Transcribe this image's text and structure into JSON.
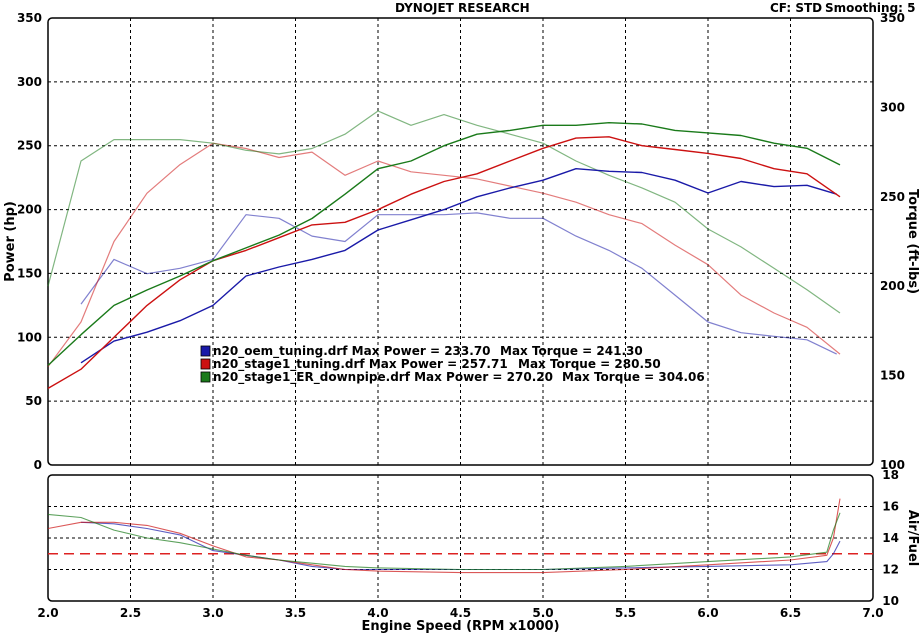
{
  "header": {
    "title": "DYNOJET RESEARCH",
    "cf_label": "CF: STD",
    "smoothing_label": "Smoothing: 5"
  },
  "colors": {
    "oem": "#1a1aa8",
    "stage1": "#cc1111",
    "downpipe": "#1a7a1a",
    "af_target": "#dd2222",
    "grid": "#000000"
  },
  "chart_data": [
    {
      "type": "line",
      "title": "",
      "xlabel": "Engine Speed (RPM x1000)",
      "ylabel": "Power (hp)",
      "y2label": "Torque (ft-lbs)",
      "xlim": [
        2.0,
        7.0
      ],
      "ylim": [
        0,
        350
      ],
      "y2lim": [
        100,
        350
      ],
      "x_ticks": [
        "2.0",
        "2.5",
        "3.0",
        "3.5",
        "4.0",
        "4.5",
        "5.0",
        "5.5",
        "6.0",
        "6.5",
        "7.0"
      ],
      "y_ticks": [
        "0",
        "50",
        "100",
        "150",
        "200",
        "250",
        "300",
        "350"
      ],
      "y2_ticks": [
        "100",
        "150",
        "200",
        "250",
        "300",
        "350"
      ],
      "grid": true,
      "legend_position": "center-left",
      "legend": [
        {
          "key": "oem",
          "run": "n20_oem_tuning.drf",
          "power_label": "Max Power = 233.70",
          "torque_label": "Max Torque = 241.30"
        },
        {
          "key": "stage1",
          "run": "n20_stage1_tuning.drf",
          "power_label": "Max Power = 257.71",
          "torque_label": "Max Torque = 280.50"
        },
        {
          "key": "downpipe",
          "run": "n20_stage1_ER_downpipe.drf",
          "power_label": "Max Power = 270.20",
          "torque_label": "Max Torque = 304.06"
        }
      ],
      "series": [
        {
          "key": "oem",
          "name": "n20_oem_tuning.drf",
          "measure": "power",
          "axis": "left",
          "x": [
            2.2,
            2.4,
            2.6,
            2.8,
            3.0,
            3.2,
            3.4,
            3.6,
            3.8,
            4.0,
            4.2,
            4.4,
            4.6,
            4.8,
            5.0,
            5.2,
            5.4,
            5.6,
            5.8,
            6.0,
            6.2,
            6.4,
            6.6,
            6.78
          ],
          "y": [
            80,
            97,
            104,
            113,
            125,
            148,
            155,
            161,
            168,
            184,
            192,
            200,
            210,
            217,
            223,
            232,
            230,
            229,
            223,
            213,
            222,
            218,
            219,
            212
          ]
        },
        {
          "key": "stage1",
          "name": "n20_stage1_tuning.drf",
          "measure": "power",
          "axis": "left",
          "x": [
            2.0,
            2.2,
            2.4,
            2.6,
            2.8,
            3.0,
            3.2,
            3.4,
            3.6,
            3.8,
            4.0,
            4.2,
            4.4,
            4.6,
            4.8,
            5.0,
            5.2,
            5.4,
            5.6,
            5.8,
            6.0,
            6.2,
            6.4,
            6.6,
            6.8
          ],
          "y": [
            60,
            75,
            100,
            125,
            145,
            160,
            168,
            178,
            188,
            190,
            200,
            212,
            222,
            228,
            238,
            248,
            256,
            257,
            250,
            247,
            244,
            240,
            232,
            228,
            210
          ]
        },
        {
          "key": "downpipe",
          "name": "n20_stage1_ER_downpipe.drf",
          "measure": "power",
          "axis": "left",
          "x": [
            2.0,
            2.2,
            2.4,
            2.6,
            2.8,
            3.0,
            3.2,
            3.4,
            3.6,
            3.8,
            4.0,
            4.2,
            4.4,
            4.6,
            4.8,
            5.0,
            5.2,
            5.4,
            5.6,
            5.8,
            6.0,
            6.2,
            6.4,
            6.6,
            6.8
          ],
          "y": [
            78,
            102,
            125,
            137,
            148,
            160,
            170,
            180,
            193,
            212,
            232,
            238,
            250,
            259,
            262,
            266,
            266,
            268,
            267,
            262,
            260,
            258,
            252,
            248,
            235
          ]
        },
        {
          "key": "oem",
          "name": "n20_oem_tuning.drf",
          "measure": "torque",
          "axis": "right",
          "x": [
            2.2,
            2.4,
            2.6,
            2.8,
            3.0,
            3.2,
            3.4,
            3.6,
            3.8,
            4.0,
            4.2,
            4.4,
            4.6,
            4.8,
            5.0,
            5.2,
            5.4,
            5.6,
            5.8,
            6.0,
            6.2,
            6.4,
            6.6,
            6.78
          ],
          "y": [
            190,
            215,
            207,
            210,
            215,
            240,
            238,
            228,
            225,
            240,
            240,
            240,
            241,
            238,
            238,
            228,
            220,
            210,
            195,
            180,
            174,
            172,
            170,
            162
          ]
        },
        {
          "key": "stage1",
          "name": "n20_stage1_tuning.drf",
          "measure": "torque",
          "axis": "right",
          "x": [
            2.0,
            2.2,
            2.4,
            2.6,
            2.8,
            3.0,
            3.2,
            3.4,
            3.6,
            3.8,
            4.0,
            4.2,
            4.4,
            4.6,
            4.8,
            5.0,
            5.2,
            5.4,
            5.6,
            5.8,
            6.0,
            6.2,
            6.4,
            6.6,
            6.8
          ],
          "y": [
            155,
            180,
            225,
            252,
            268,
            280,
            277,
            272,
            275,
            262,
            270,
            264,
            262,
            260,
            256,
            252,
            247,
            240,
            235,
            223,
            212,
            195,
            185,
            177,
            162
          ]
        },
        {
          "key": "downpipe",
          "name": "n20_stage1_ER_downpipe.drf",
          "measure": "torque",
          "axis": "right",
          "x": [
            2.0,
            2.2,
            2.4,
            2.6,
            2.8,
            3.0,
            3.2,
            3.4,
            3.6,
            3.8,
            4.0,
            4.2,
            4.4,
            4.6,
            4.8,
            5.0,
            5.2,
            5.4,
            5.6,
            5.8,
            6.0,
            6.2,
            6.4,
            6.6,
            6.8
          ],
          "y": [
            200,
            270,
            282,
            282,
            282,
            280,
            276,
            274,
            277,
            285,
            298,
            290,
            296,
            290,
            285,
            280,
            270,
            262,
            255,
            247,
            232,
            222,
            210,
            198,
            185
          ]
        }
      ]
    },
    {
      "type": "line",
      "title": "",
      "xlabel": "Engine Speed (RPM x1000)",
      "ylabel": "Air/Fuel",
      "xlim": [
        2.0,
        7.0
      ],
      "ylim": [
        10,
        18
      ],
      "y_ticks": [
        "10",
        "12",
        "14",
        "16",
        "18"
      ],
      "grid": true,
      "target_line": {
        "value": 13,
        "style": "dashed"
      },
      "series": [
        {
          "key": "oem",
          "name": "n20_oem_tuning.drf",
          "axis": "left",
          "x": [
            2.2,
            2.4,
            2.6,
            2.8,
            3.0,
            3.2,
            3.4,
            3.6,
            3.8,
            4.0,
            4.5,
            5.0,
            5.5,
            6.0,
            6.5,
            6.72,
            6.76,
            6.8
          ],
          "y": [
            15.0,
            14.9,
            14.6,
            14.2,
            13.2,
            12.9,
            12.6,
            12.2,
            12.0,
            12.0,
            12.0,
            12.0,
            12.1,
            12.2,
            12.3,
            12.5,
            13.0,
            13.8
          ]
        },
        {
          "key": "stage1",
          "name": "n20_stage1_tuning.drf",
          "axis": "left",
          "x": [
            2.0,
            2.2,
            2.4,
            2.6,
            2.8,
            3.0,
            3.2,
            3.4,
            3.6,
            3.8,
            4.0,
            4.5,
            5.0,
            5.5,
            6.0,
            6.5,
            6.72,
            6.76,
            6.8
          ],
          "y": [
            14.6,
            15.0,
            15.0,
            14.8,
            14.3,
            13.5,
            12.8,
            12.6,
            12.3,
            12.0,
            11.9,
            11.8,
            11.8,
            12.0,
            12.3,
            12.6,
            12.9,
            14.0,
            16.5
          ]
        },
        {
          "key": "downpipe",
          "name": "n20_stage1_ER_downpipe.drf",
          "axis": "left",
          "x": [
            2.0,
            2.2,
            2.4,
            2.6,
            2.8,
            3.0,
            3.2,
            3.4,
            3.6,
            3.8,
            4.0,
            4.5,
            5.0,
            5.5,
            6.0,
            6.5,
            6.72,
            6.76,
            6.8
          ],
          "y": [
            15.5,
            15.3,
            14.5,
            14.0,
            13.7,
            13.3,
            12.9,
            12.6,
            12.4,
            12.2,
            12.1,
            12.0,
            12.0,
            12.2,
            12.5,
            12.8,
            13.1,
            14.5,
            15.6
          ]
        }
      ]
    }
  ]
}
